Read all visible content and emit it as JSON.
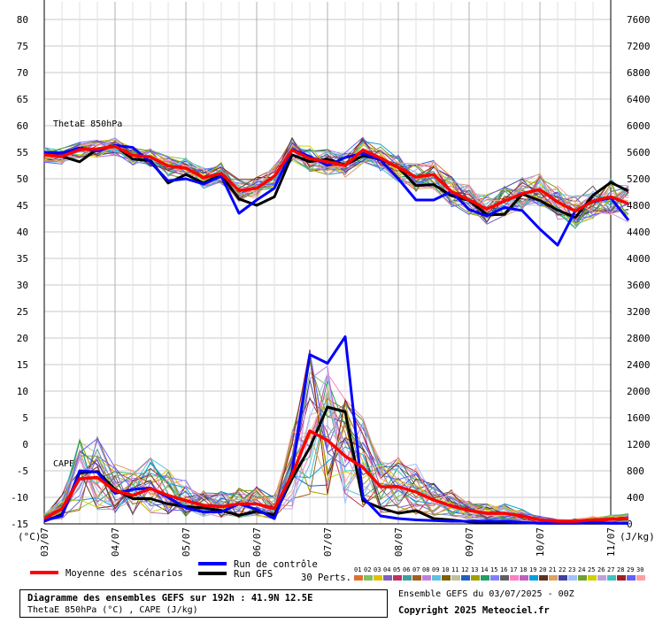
{
  "chart_data": {
    "type": "line",
    "title": "Diagramme des ensembles GEFS sur 192h : 41.9N 12.5E",
    "subtitle": "ThetaE 850hPa (°C) , CAPE (J/kg)",
    "run_info": "Ensemble GEFS du 03/07/2025 - 00Z",
    "copyright": "Copyright 2025 Meteociel.fr",
    "ylabel_left_unit": "(°C)",
    "ylabel_right_unit": "(J/kg)",
    "ylim_left": [
      -15,
      80
    ],
    "ylim_right": [
      0,
      7600
    ],
    "left_ticks": [
      -15,
      -10,
      -5,
      0,
      5,
      10,
      15,
      20,
      25,
      30,
      35,
      40,
      45,
      50,
      55,
      60,
      65,
      70,
      75,
      80
    ],
    "right_ticks": [
      0,
      400,
      800,
      1200,
      1600,
      2000,
      2400,
      2800,
      3200,
      3600,
      4000,
      4400,
      4800,
      5200,
      5600,
      6000,
      6400,
      6800,
      7200,
      7600
    ],
    "x_labels": [
      "03/07",
      "04/07",
      "05/07",
      "06/07",
      "07/07",
      "08/07",
      "09/07",
      "10/07",
      "11/07"
    ],
    "x_label_hours": [
      0,
      24,
      48,
      72,
      96,
      120,
      144,
      168,
      192
    ],
    "step_hours": 6,
    "panel_labels": {
      "thetae": "ThetaE 850hPa",
      "cape": "CAPE"
    },
    "grid": true,
    "legend": {
      "mean": "Moyenne des scénarios",
      "control": "Run de contrôle",
      "gfs": "Run GFS",
      "perts_label": "30 Perts.",
      "pert_numbers": [
        "01",
        "02",
        "03",
        "04",
        "05",
        "06",
        "07",
        "08",
        "09",
        "10",
        "11",
        "12",
        "13",
        "14",
        "15",
        "16",
        "17",
        "18",
        "19",
        "20",
        "21",
        "22",
        "23",
        "24",
        "25",
        "26",
        "27",
        "28",
        "29",
        "30"
      ],
      "pert_colors": [
        "#e07030",
        "#80c060",
        "#e0c000",
        "#8060c0",
        "#c03060",
        "#40a0a0",
        "#a06020",
        "#c080e0",
        "#60c0e0",
        "#806000",
        "#c0c0a0",
        "#2060c0",
        "#a0a000",
        "#20a060",
        "#8080ff",
        "#606060",
        "#ff80c0",
        "#c060c0",
        "#00a0e0",
        "#603020",
        "#e0a060",
        "#4040a0",
        "#a0c0ff",
        "#70a030",
        "#d0d000",
        "#c0a0e0",
        "#40c0c0",
        "#a02020",
        "#6060ff",
        "#ffa0a0"
      ]
    },
    "series": [
      {
        "name": "Moyenne des scénarios",
        "color": "#ff0000",
        "role": "mean",
        "thetae": [
          54.5,
          54.2,
          55.5,
          55.6,
          56.1,
          54.4,
          54.1,
          52.4,
          52.0,
          50.2,
          51.0,
          47.8,
          48.2,
          50.5,
          55.4,
          53.8,
          53.2,
          52.5,
          55.4,
          53.9,
          52.1,
          50.3,
          50.8,
          47.6,
          46.0,
          44.3,
          45.8,
          47.2,
          48.0,
          45.6,
          43.9,
          45.8,
          46.6,
          45.3
        ],
        "cape": [
          80,
          230,
          680,
          700,
          500,
          430,
          530,
          430,
          350,
          280,
          260,
          300,
          300,
          230,
          740,
          1400,
          1260,
          1020,
          850,
          560,
          560,
          480,
          360,
          270,
          200,
          160,
          160,
          120,
          60,
          40,
          40,
          60,
          70,
          80
        ]
      },
      {
        "name": "Run de contrôle",
        "color": "#0000ff",
        "role": "control",
        "thetae": [
          55.0,
          54.8,
          55.8,
          55.2,
          56.3,
          55.9,
          53.1,
          49.6,
          50.0,
          49.0,
          50.5,
          43.5,
          46.0,
          48.2,
          55.5,
          54.2,
          52.5,
          54.0,
          54.8,
          53.5,
          50.0,
          46.0,
          46.0,
          47.6,
          44.2,
          43.0,
          44.6,
          44.0,
          40.5,
          37.5,
          44.0,
          45.7,
          46.4,
          42.2
        ],
        "cape": [
          50,
          120,
          800,
          780,
          460,
          520,
          540,
          400,
          240,
          180,
          180,
          300,
          220,
          80,
          780,
          2550,
          2420,
          2820,
          400,
          120,
          80,
          60,
          50,
          40,
          40,
          40,
          40,
          20,
          10,
          10,
          10,
          20,
          10,
          10
        ]
      },
      {
        "name": "Run GFS",
        "color": "#000000",
        "role": "gfs",
        "thetae": [
          55.0,
          54.2,
          53.2,
          55.6,
          56.2,
          53.7,
          53.4,
          49.2,
          50.8,
          49.2,
          50.7,
          46.2,
          45.0,
          46.6,
          54.5,
          53.2,
          53.7,
          52.6,
          54.3,
          53.7,
          52.1,
          48.7,
          48.9,
          46.8,
          45.9,
          43.2,
          43.3,
          47.1,
          45.9,
          44.1,
          42.7,
          46.9,
          49.3,
          47.7
        ],
        "cape": [
          40,
          140,
          770,
          790,
          520,
          380,
          380,
          300,
          260,
          240,
          200,
          130,
          190,
          130,
          680,
          1150,
          1760,
          1690,
          350,
          240,
          160,
          200,
          80,
          60,
          30,
          20,
          20,
          20,
          10,
          10,
          10,
          10,
          10,
          10
        ]
      }
    ]
  }
}
